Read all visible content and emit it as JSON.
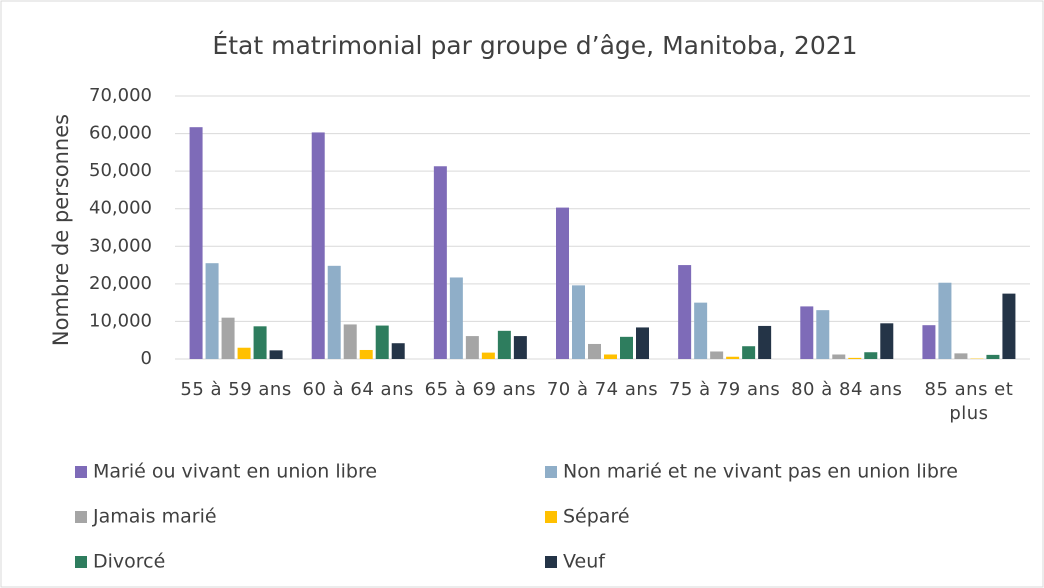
{
  "chart_data": {
    "type": "bar",
    "title": "État matrimonial par groupe d’âge, Manitoba, 2021",
    "y_label": "Nombre de personnes",
    "categories": [
      "55 à 59 ans",
      "60 à 64 ans",
      "65 à 69 ans",
      "70 à 74 ans",
      "75 à 79 ans",
      "80 à 84 ans",
      "85 ans et plus"
    ],
    "series": [
      {
        "name": "Marié ou vivant en union libre",
        "color": "#7e6bb8",
        "values": [
          61700,
          60300,
          51300,
          40300,
          25000,
          14000,
          9000
        ]
      },
      {
        "name": "Non marié et ne vivant pas en union libre",
        "color": "#8faec8",
        "values": [
          25500,
          24800,
          21700,
          19600,
          15000,
          13000,
          20300
        ]
      },
      {
        "name": "Jamais marié",
        "color": "#a5a5a5",
        "values": [
          11000,
          9200,
          6100,
          4000,
          2000,
          1200,
          1500
        ]
      },
      {
        "name": "Séparé",
        "color": "#ffc000",
        "values": [
          3000,
          2400,
          1700,
          1200,
          600,
          300,
          100
        ]
      },
      {
        "name": "Divorcé",
        "color": "#2e7d5e",
        "values": [
          8700,
          8900,
          7500,
          5900,
          3400,
          1800,
          1100
        ]
      },
      {
        "name": "Veuf",
        "color": "#243447",
        "values": [
          2300,
          4200,
          6100,
          8400,
          8800,
          9500,
          17400
        ]
      }
    ],
    "ylim": [
      0,
      70000
    ],
    "yticks": [
      0,
      {
        "value": 10000,
        "label": "10,000"
      },
      {
        "value": 20000,
        "label": "20,000"
      },
      {
        "value": 30000,
        "label": "30,000"
      },
      {
        "value": 40000,
        "label": "40,000"
      },
      {
        "value": 50000,
        "label": "50,000"
      },
      {
        "value": 60000,
        "label": "60,000"
      },
      {
        "value": 70000,
        "label": "70,000"
      }
    ],
    "grid": true
  }
}
